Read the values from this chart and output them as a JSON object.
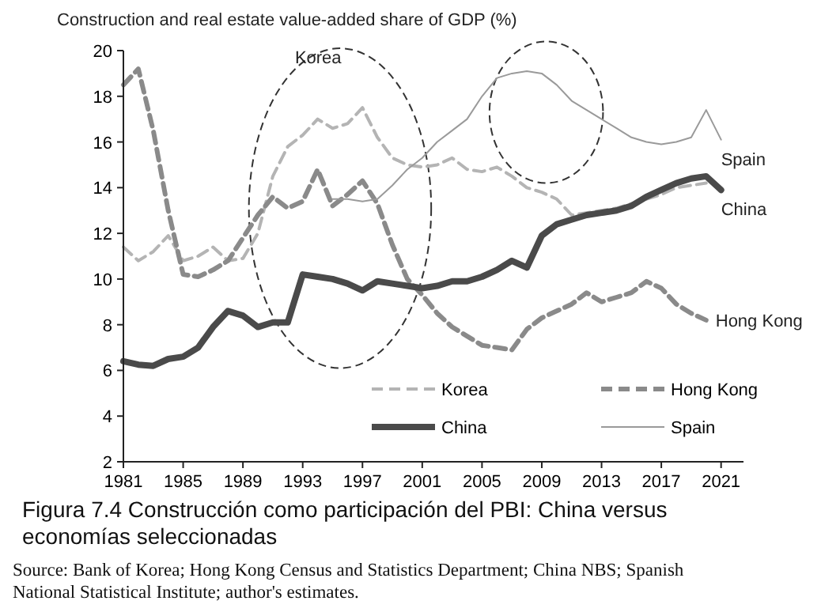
{
  "chart_data": {
    "type": "line",
    "ylabel": "Construction and real estate value-added share of GDP (%)",
    "title": "Figura 7.4 Construcción como participación del PBI: China versus economías seleccionadas",
    "annotations": [
      "Source: Bank of Korea; Hong Kong Census and Statistics Department; China NBS; Spanish National Statistical Institute; author's estimates."
    ],
    "x": [
      1981,
      1982,
      1983,
      1984,
      1985,
      1986,
      1987,
      1988,
      1989,
      1990,
      1991,
      1992,
      1993,
      1994,
      1995,
      1996,
      1997,
      1998,
      1999,
      2000,
      2001,
      2002,
      2003,
      2004,
      2005,
      2006,
      2007,
      2008,
      2009,
      2010,
      2011,
      2012,
      2013,
      2014,
      2015,
      2016,
      2017,
      2018,
      2019,
      2020,
      2021
    ],
    "xlim": [
      1981,
      2022.5
    ],
    "xticks": [
      1981,
      1985,
      1989,
      1993,
      1997,
      2001,
      2005,
      2009,
      2013,
      2017,
      2021
    ],
    "ylim": [
      2,
      20
    ],
    "yticks": [
      2,
      4,
      6,
      8,
      10,
      12,
      14,
      16,
      18,
      20
    ],
    "grid": false,
    "legend": "bottom right",
    "marker": "none",
    "series": [
      {
        "name": "Korea",
        "color": "#b4b4b4",
        "line_style": "dashed",
        "values": [
          11.4,
          10.8,
          11.2,
          11.9,
          10.8,
          11.0,
          11.4,
          10.8,
          10.9,
          12.0,
          14.5,
          15.8,
          16.3,
          17.0,
          16.6,
          16.8,
          17.5,
          16.2,
          15.3,
          15.0,
          14.9,
          15.0,
          15.3,
          14.8,
          14.7,
          14.9,
          14.5,
          14.0,
          13.8,
          13.5,
          12.8,
          12.9,
          13.0,
          13.1,
          13.3,
          13.5,
          13.7,
          14.0,
          14.1,
          14.2,
          null
        ]
      },
      {
        "name": "Hong Kong",
        "color": "#8a8a8a",
        "line_style": "dashed",
        "values": [
          18.5,
          19.2,
          16.5,
          13.0,
          10.2,
          10.1,
          10.4,
          10.8,
          11.8,
          12.8,
          13.6,
          13.1,
          13.4,
          14.8,
          13.2,
          13.7,
          14.3,
          13.3,
          11.5,
          10.0,
          9.3,
          8.5,
          7.9,
          7.5,
          7.1,
          7.0,
          6.9,
          7.8,
          8.3,
          8.6,
          8.9,
          9.4,
          9.0,
          9.2,
          9.4,
          9.9,
          9.6,
          8.9,
          8.5,
          8.2,
          null
        ]
      },
      {
        "name": "China",
        "color": "#4a4a4a",
        "line_style": "solid",
        "values": [
          6.4,
          6.25,
          6.2,
          6.5,
          6.6,
          7.0,
          7.9,
          8.6,
          8.4,
          7.9,
          8.1,
          8.1,
          10.2,
          10.1,
          10.0,
          9.8,
          9.5,
          9.9,
          9.8,
          9.7,
          9.6,
          9.7,
          9.9,
          9.9,
          10.1,
          10.4,
          10.8,
          10.5,
          11.9,
          12.4,
          12.6,
          12.8,
          12.9,
          13.0,
          13.2,
          13.6,
          13.9,
          14.2,
          14.4,
          14.5,
          13.9
        ]
      },
      {
        "name": "Spain",
        "color": "#9a9a9a",
        "line_style": "solid",
        "values": [
          null,
          null,
          null,
          null,
          null,
          null,
          null,
          null,
          null,
          null,
          null,
          null,
          null,
          null,
          13.5,
          13.5,
          13.4,
          13.5,
          14.1,
          14.8,
          15.3,
          16.0,
          16.5,
          17.0,
          18.0,
          18.8,
          19.0,
          19.1,
          19.0,
          18.5,
          17.8,
          17.4,
          17.0,
          16.6,
          16.2,
          16.0,
          15.9,
          16.0,
          16.2,
          17.4,
          16.1
        ]
      }
    ]
  }
}
